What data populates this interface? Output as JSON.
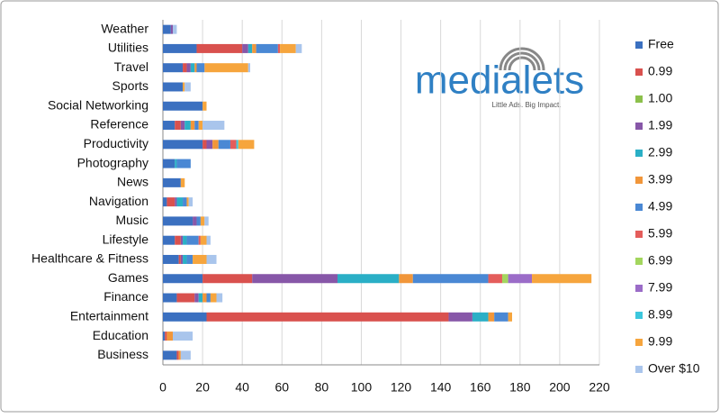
{
  "chart_data": {
    "type": "stacked-bar-horizontal",
    "logo_text": "medialets",
    "logo_tagline": "Little Ads. Big Impact.",
    "categories": [
      "Weather",
      "Utilities",
      "Travel",
      "Sports",
      "Social Networking",
      "Reference",
      "Productivity",
      "Photography",
      "News",
      "Navigation",
      "Music",
      "Lifestyle",
      "Healthcare & Fitness",
      "Games",
      "Finance",
      "Entertainment",
      "Education",
      "Business"
    ],
    "series": [
      {
        "name": "Free",
        "color": "#3b70c0",
        "values": [
          4,
          17,
          10,
          10,
          20,
          6,
          20,
          6,
          9,
          2,
          15,
          6,
          8,
          20,
          7,
          22,
          1,
          7
        ]
      },
      {
        "name": "0.99",
        "color": "#d9514e",
        "values": [
          0,
          23,
          2,
          0,
          0,
          3,
          2,
          0,
          0,
          4,
          0,
          3,
          1,
          25,
          9,
          122,
          1,
          1
        ]
      },
      {
        "name": "1.00",
        "color": "#8cc04b",
        "values": [
          0,
          0,
          0,
          0,
          0,
          0,
          0,
          0,
          0,
          0,
          0,
          0,
          0,
          0,
          0,
          0,
          0,
          0
        ]
      },
      {
        "name": "1.99",
        "color": "#8757a8",
        "values": [
          1,
          3,
          2,
          0,
          0,
          2,
          3,
          0,
          0,
          1,
          2,
          1,
          1,
          43,
          2,
          12,
          0,
          0
        ]
      },
      {
        "name": "2.99",
        "color": "#2aafc6",
        "values": [
          0,
          2,
          2,
          0,
          0,
          3,
          0,
          1,
          0,
          3,
          0,
          2,
          2,
          31,
          2,
          8,
          0,
          0
        ]
      },
      {
        "name": "3.99",
        "color": "#f1963a",
        "values": [
          0,
          2,
          1,
          0,
          0,
          2,
          3,
          0,
          0,
          0,
          0,
          0,
          0,
          7,
          2,
          3,
          3,
          1
        ]
      },
      {
        "name": "4.99",
        "color": "#4a88d4",
        "values": [
          0,
          11,
          4,
          0,
          0,
          2,
          6,
          7,
          0,
          2,
          2,
          6,
          3,
          38,
          2,
          7,
          0,
          0
        ]
      },
      {
        "name": "5.99",
        "color": "#e45d5b",
        "values": [
          0,
          1,
          0,
          0,
          0,
          0,
          3,
          0,
          0,
          0,
          0,
          1,
          0,
          7,
          0,
          0,
          0,
          0
        ]
      },
      {
        "name": "6.99",
        "color": "#a3d65e",
        "values": [
          0,
          0,
          0,
          0,
          0,
          0,
          0,
          0,
          0,
          0,
          0,
          0,
          0,
          3,
          0,
          0,
          0,
          0
        ]
      },
      {
        "name": "7.99",
        "color": "#9b6cc8",
        "values": [
          0,
          0,
          0,
          0,
          0,
          0,
          0,
          0,
          0,
          0,
          0,
          0,
          0,
          12,
          0,
          0,
          0,
          0
        ]
      },
      {
        "name": "8.99",
        "color": "#3cc7dd",
        "values": [
          0,
          0,
          0,
          0,
          0,
          0,
          1,
          0,
          0,
          0,
          0,
          0,
          0,
          0,
          0,
          0,
          0,
          0
        ]
      },
      {
        "name": "9.99",
        "color": "#f6a53d",
        "values": [
          0,
          8,
          22,
          1,
          2,
          2,
          8,
          0,
          2,
          1,
          2,
          3,
          7,
          30,
          3,
          2,
          0,
          0
        ]
      },
      {
        "name": "Over $10",
        "color": "#a9c5ec",
        "values": [
          2,
          3,
          1,
          3,
          0,
          11,
          0,
          0,
          0,
          2,
          2,
          2,
          5,
          0,
          3,
          0,
          10,
          5
        ]
      }
    ],
    "xlim": [
      0,
      220
    ],
    "xticks": [
      0,
      20,
      40,
      60,
      80,
      100,
      120,
      140,
      160,
      180,
      200,
      220
    ],
    "grid": true
  }
}
